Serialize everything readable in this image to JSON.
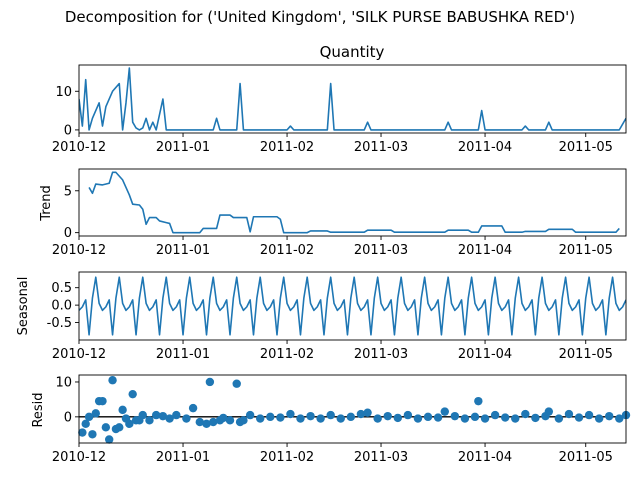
{
  "title": "Decomposition for ('United Kingdom', 'SILK PURSE BABUSHKA RED')",
  "chart_data": [
    {
      "type": "line",
      "name": "observed",
      "title": "Quantity",
      "ylabel": "",
      "xlim": [
        "2010-12-01",
        "2011-05-13"
      ],
      "ylim": [
        -0.8,
        16.8
      ],
      "yticks": [
        0,
        10
      ],
      "xticks": [
        "2010-12",
        "2011-01",
        "2011-02",
        "2011-03",
        "2011-04",
        "2011-05"
      ],
      "color": "#1f77b4",
      "points": [
        [
          "2010-12-01",
          8
        ],
        [
          "2010-12-02",
          1
        ],
        [
          "2010-12-03",
          13
        ],
        [
          "2010-12-04",
          0
        ],
        [
          "2010-12-05",
          3
        ],
        [
          "2010-12-07",
          7
        ],
        [
          "2010-12-08",
          1
        ],
        [
          "2010-12-09",
          6
        ],
        [
          "2010-12-11",
          10
        ],
        [
          "2010-12-13",
          12
        ],
        [
          "2010-12-14",
          0
        ],
        [
          "2010-12-15",
          7
        ],
        [
          "2010-12-16",
          16
        ],
        [
          "2010-12-17",
          2
        ],
        [
          "2010-12-18",
          0.5
        ],
        [
          "2010-12-19",
          0
        ],
        [
          "2010-12-20",
          0.5
        ],
        [
          "2010-12-21",
          3
        ],
        [
          "2010-12-22",
          0
        ],
        [
          "2010-12-23",
          2
        ],
        [
          "2010-12-24",
          0
        ],
        [
          "2010-12-26",
          8
        ],
        [
          "2010-12-27",
          0
        ],
        [
          "2011-01-10",
          0
        ],
        [
          "2011-01-11",
          3
        ],
        [
          "2011-01-12",
          0
        ],
        [
          "2011-01-17",
          0
        ],
        [
          "2011-01-18",
          12
        ],
        [
          "2011-01-19",
          0
        ],
        [
          "2011-02-01",
          0
        ],
        [
          "2011-02-02",
          1
        ],
        [
          "2011-02-03",
          0
        ],
        [
          "2011-02-13",
          0
        ],
        [
          "2011-02-14",
          12
        ],
        [
          "2011-02-15",
          0
        ],
        [
          "2011-02-24",
          0
        ],
        [
          "2011-02-25",
          2
        ],
        [
          "2011-02-26",
          0
        ],
        [
          "2011-03-20",
          0
        ],
        [
          "2011-03-21",
          2
        ],
        [
          "2011-03-22",
          0
        ],
        [
          "2011-03-30",
          0
        ],
        [
          "2011-03-31",
          5
        ],
        [
          "2011-04-01",
          0
        ],
        [
          "2011-04-12",
          0
        ],
        [
          "2011-04-13",
          1
        ],
        [
          "2011-04-14",
          0
        ],
        [
          "2011-04-19",
          0
        ],
        [
          "2011-04-20",
          2
        ],
        [
          "2011-04-21",
          0
        ],
        [
          "2011-05-11",
          0
        ],
        [
          "2011-05-13",
          3
        ]
      ]
    },
    {
      "type": "line",
      "name": "trend",
      "title": "",
      "ylabel": "Trend",
      "xlim": [
        "2010-12-01",
        "2011-05-13"
      ],
      "ylim": [
        -0.4,
        7.6
      ],
      "yticks": [
        0,
        5
      ],
      "xticks": [
        "2010-12",
        "2011-01",
        "2011-02",
        "2011-03",
        "2011-04",
        "2011-05"
      ],
      "color": "#1f77b4",
      "points": [
        [
          "2010-12-04",
          5.4
        ],
        [
          "2010-12-05",
          4.7
        ],
        [
          "2010-12-06",
          5.8
        ],
        [
          "2010-12-08",
          5.7
        ],
        [
          "2010-12-10",
          5.9
        ],
        [
          "2010-12-11",
          7.2
        ],
        [
          "2010-12-12",
          7.2
        ],
        [
          "2010-12-14",
          6.3
        ],
        [
          "2010-12-16",
          4.5
        ],
        [
          "2010-12-17",
          3.4
        ],
        [
          "2010-12-19",
          3.3
        ],
        [
          "2010-12-20",
          2.8
        ],
        [
          "2010-12-21",
          1.0
        ],
        [
          "2010-12-22",
          1.8
        ],
        [
          "2010-12-24",
          1.8
        ],
        [
          "2010-12-25",
          1.4
        ],
        [
          "2010-12-27",
          1.2
        ],
        [
          "2010-12-28",
          1.1
        ],
        [
          "2010-12-29",
          0
        ],
        [
          "2011-01-06",
          0
        ],
        [
          "2011-01-07",
          0.5
        ],
        [
          "2011-01-11",
          0.5
        ],
        [
          "2011-01-12",
          2.1
        ],
        [
          "2011-01-15",
          2.1
        ],
        [
          "2011-01-16",
          1.8
        ],
        [
          "2011-01-20",
          1.8
        ],
        [
          "2011-01-21",
          0.1
        ],
        [
          "2011-01-22",
          1.9
        ],
        [
          "2011-01-29",
          1.9
        ],
        [
          "2011-01-30",
          1.6
        ],
        [
          "2011-01-31",
          0
        ],
        [
          "2011-02-07",
          0
        ],
        [
          "2011-02-08",
          0.2
        ],
        [
          "2011-02-13",
          0.2
        ],
        [
          "2011-02-14",
          0.05
        ],
        [
          "2011-02-24",
          0.05
        ],
        [
          "2011-02-25",
          0.3
        ],
        [
          "2011-03-04",
          0.3
        ],
        [
          "2011-03-05",
          0.05
        ],
        [
          "2011-03-20",
          0.05
        ],
        [
          "2011-03-21",
          0.3
        ],
        [
          "2011-03-27",
          0.3
        ],
        [
          "2011-03-28",
          0.05
        ],
        [
          "2011-03-30",
          0.05
        ],
        [
          "2011-03-31",
          0.8
        ],
        [
          "2011-04-06",
          0.8
        ],
        [
          "2011-04-07",
          0.05
        ],
        [
          "2011-04-12",
          0.05
        ],
        [
          "2011-04-13",
          0.15
        ],
        [
          "2011-04-19",
          0.15
        ],
        [
          "2011-04-20",
          0.4
        ],
        [
          "2011-04-27",
          0.4
        ],
        [
          "2011-04-28",
          0.05
        ],
        [
          "2011-05-10",
          0.05
        ],
        [
          "2011-05-11",
          0.5
        ]
      ]
    },
    {
      "type": "line",
      "name": "seasonal",
      "title": "",
      "ylabel": "Seasonal",
      "xlim": [
        "2010-12-01",
        "2011-05-13"
      ],
      "ylim": [
        -1.0,
        0.95
      ],
      "yticks": [
        -0.5,
        0.0,
        0.5
      ],
      "xticks": [
        "2010-12",
        "2011-01",
        "2011-02",
        "2011-03",
        "2011-04",
        "2011-05"
      ],
      "color": "#1f77b4",
      "period_days": 7,
      "period_start": "2010-12-01",
      "pattern": [
        -0.15,
        -0.05,
        0.15,
        -0.85,
        0.2,
        0.8,
        0.05
      ]
    },
    {
      "type": "scatter",
      "name": "resid",
      "title": "",
      "ylabel": "Resid",
      "xlim": [
        "2010-12-01",
        "2011-05-13"
      ],
      "ylim": [
        -7.5,
        12
      ],
      "yticks": [
        0,
        10
      ],
      "xticks": [
        "2010-12",
        "2011-01",
        "2011-02",
        "2011-03",
        "2011-04",
        "2011-05"
      ],
      "color": "#1f77b4",
      "zero_line": true,
      "points": [
        [
          "2010-12-02",
          -4.5
        ],
        [
          "2010-12-03",
          -2
        ],
        [
          "2010-12-04",
          0
        ],
        [
          "2010-12-05",
          -5
        ],
        [
          "2010-12-06",
          1
        ],
        [
          "2010-12-07",
          4.5
        ],
        [
          "2010-12-08",
          4.5
        ],
        [
          "2010-12-09",
          -3
        ],
        [
          "2010-12-10",
          -6.5
        ],
        [
          "2010-12-11",
          10.5
        ],
        [
          "2010-12-12",
          -3.5
        ],
        [
          "2010-12-13",
          -3
        ],
        [
          "2010-12-14",
          2
        ],
        [
          "2010-12-15",
          -0.5
        ],
        [
          "2010-12-16",
          -2
        ],
        [
          "2010-12-17",
          6.5
        ],
        [
          "2010-12-18",
          -1
        ],
        [
          "2010-12-19",
          -1
        ],
        [
          "2010-12-20",
          0.5
        ],
        [
          "2010-12-22",
          -1
        ],
        [
          "2010-12-24",
          0.5
        ],
        [
          "2010-12-26",
          0.2
        ],
        [
          "2010-12-28",
          -0.5
        ],
        [
          "2010-12-30",
          0.5
        ],
        [
          "2011-01-02",
          -0.5
        ],
        [
          "2011-01-04",
          2.5
        ],
        [
          "2011-01-06",
          -1.5
        ],
        [
          "2011-01-08",
          -2
        ],
        [
          "2011-01-09",
          10
        ],
        [
          "2011-01-10",
          -1.5
        ],
        [
          "2011-01-12",
          -1
        ],
        [
          "2011-01-13",
          -0.3
        ],
        [
          "2011-01-15",
          -1
        ],
        [
          "2011-01-17",
          9.5
        ],
        [
          "2011-01-18",
          -1.5
        ],
        [
          "2011-01-19",
          -1
        ],
        [
          "2011-01-21",
          0.5
        ],
        [
          "2011-01-24",
          -0.5
        ],
        [
          "2011-01-27",
          0
        ],
        [
          "2011-01-30",
          -0.2
        ],
        [
          "2011-02-02",
          0.8
        ],
        [
          "2011-02-05",
          -0.5
        ],
        [
          "2011-02-08",
          0.2
        ],
        [
          "2011-02-11",
          -0.5
        ],
        [
          "2011-02-14",
          0.5
        ],
        [
          "2011-02-17",
          -0.5
        ],
        [
          "2011-02-20",
          0
        ],
        [
          "2011-02-23",
          0.8
        ],
        [
          "2011-02-25",
          1.2
        ],
        [
          "2011-02-28",
          -0.5
        ],
        [
          "2011-03-03",
          0.2
        ],
        [
          "2011-03-06",
          -0.3
        ],
        [
          "2011-03-09",
          0.5
        ],
        [
          "2011-03-12",
          -0.5
        ],
        [
          "2011-03-15",
          0
        ],
        [
          "2011-03-18",
          -0.2
        ],
        [
          "2011-03-20",
          1.5
        ],
        [
          "2011-03-23",
          0.2
        ],
        [
          "2011-03-26",
          -0.5
        ],
        [
          "2011-03-29",
          0
        ],
        [
          "2011-03-30",
          4.5
        ],
        [
          "2011-04-01",
          -0.5
        ],
        [
          "2011-04-04",
          0.5
        ],
        [
          "2011-04-07",
          -0.2
        ],
        [
          "2011-04-10",
          -0.5
        ],
        [
          "2011-04-13",
          0.8
        ],
        [
          "2011-04-16",
          -0.3
        ],
        [
          "2011-04-19",
          0.2
        ],
        [
          "2011-04-20",
          1.5
        ],
        [
          "2011-04-23",
          -0.5
        ],
        [
          "2011-04-26",
          0.8
        ],
        [
          "2011-04-29",
          -0.2
        ],
        [
          "2011-05-02",
          0.5
        ],
        [
          "2011-05-05",
          -0.5
        ],
        [
          "2011-05-08",
          0.2
        ],
        [
          "2011-05-11",
          -0.5
        ],
        [
          "2011-05-13",
          0.5
        ]
      ]
    }
  ]
}
